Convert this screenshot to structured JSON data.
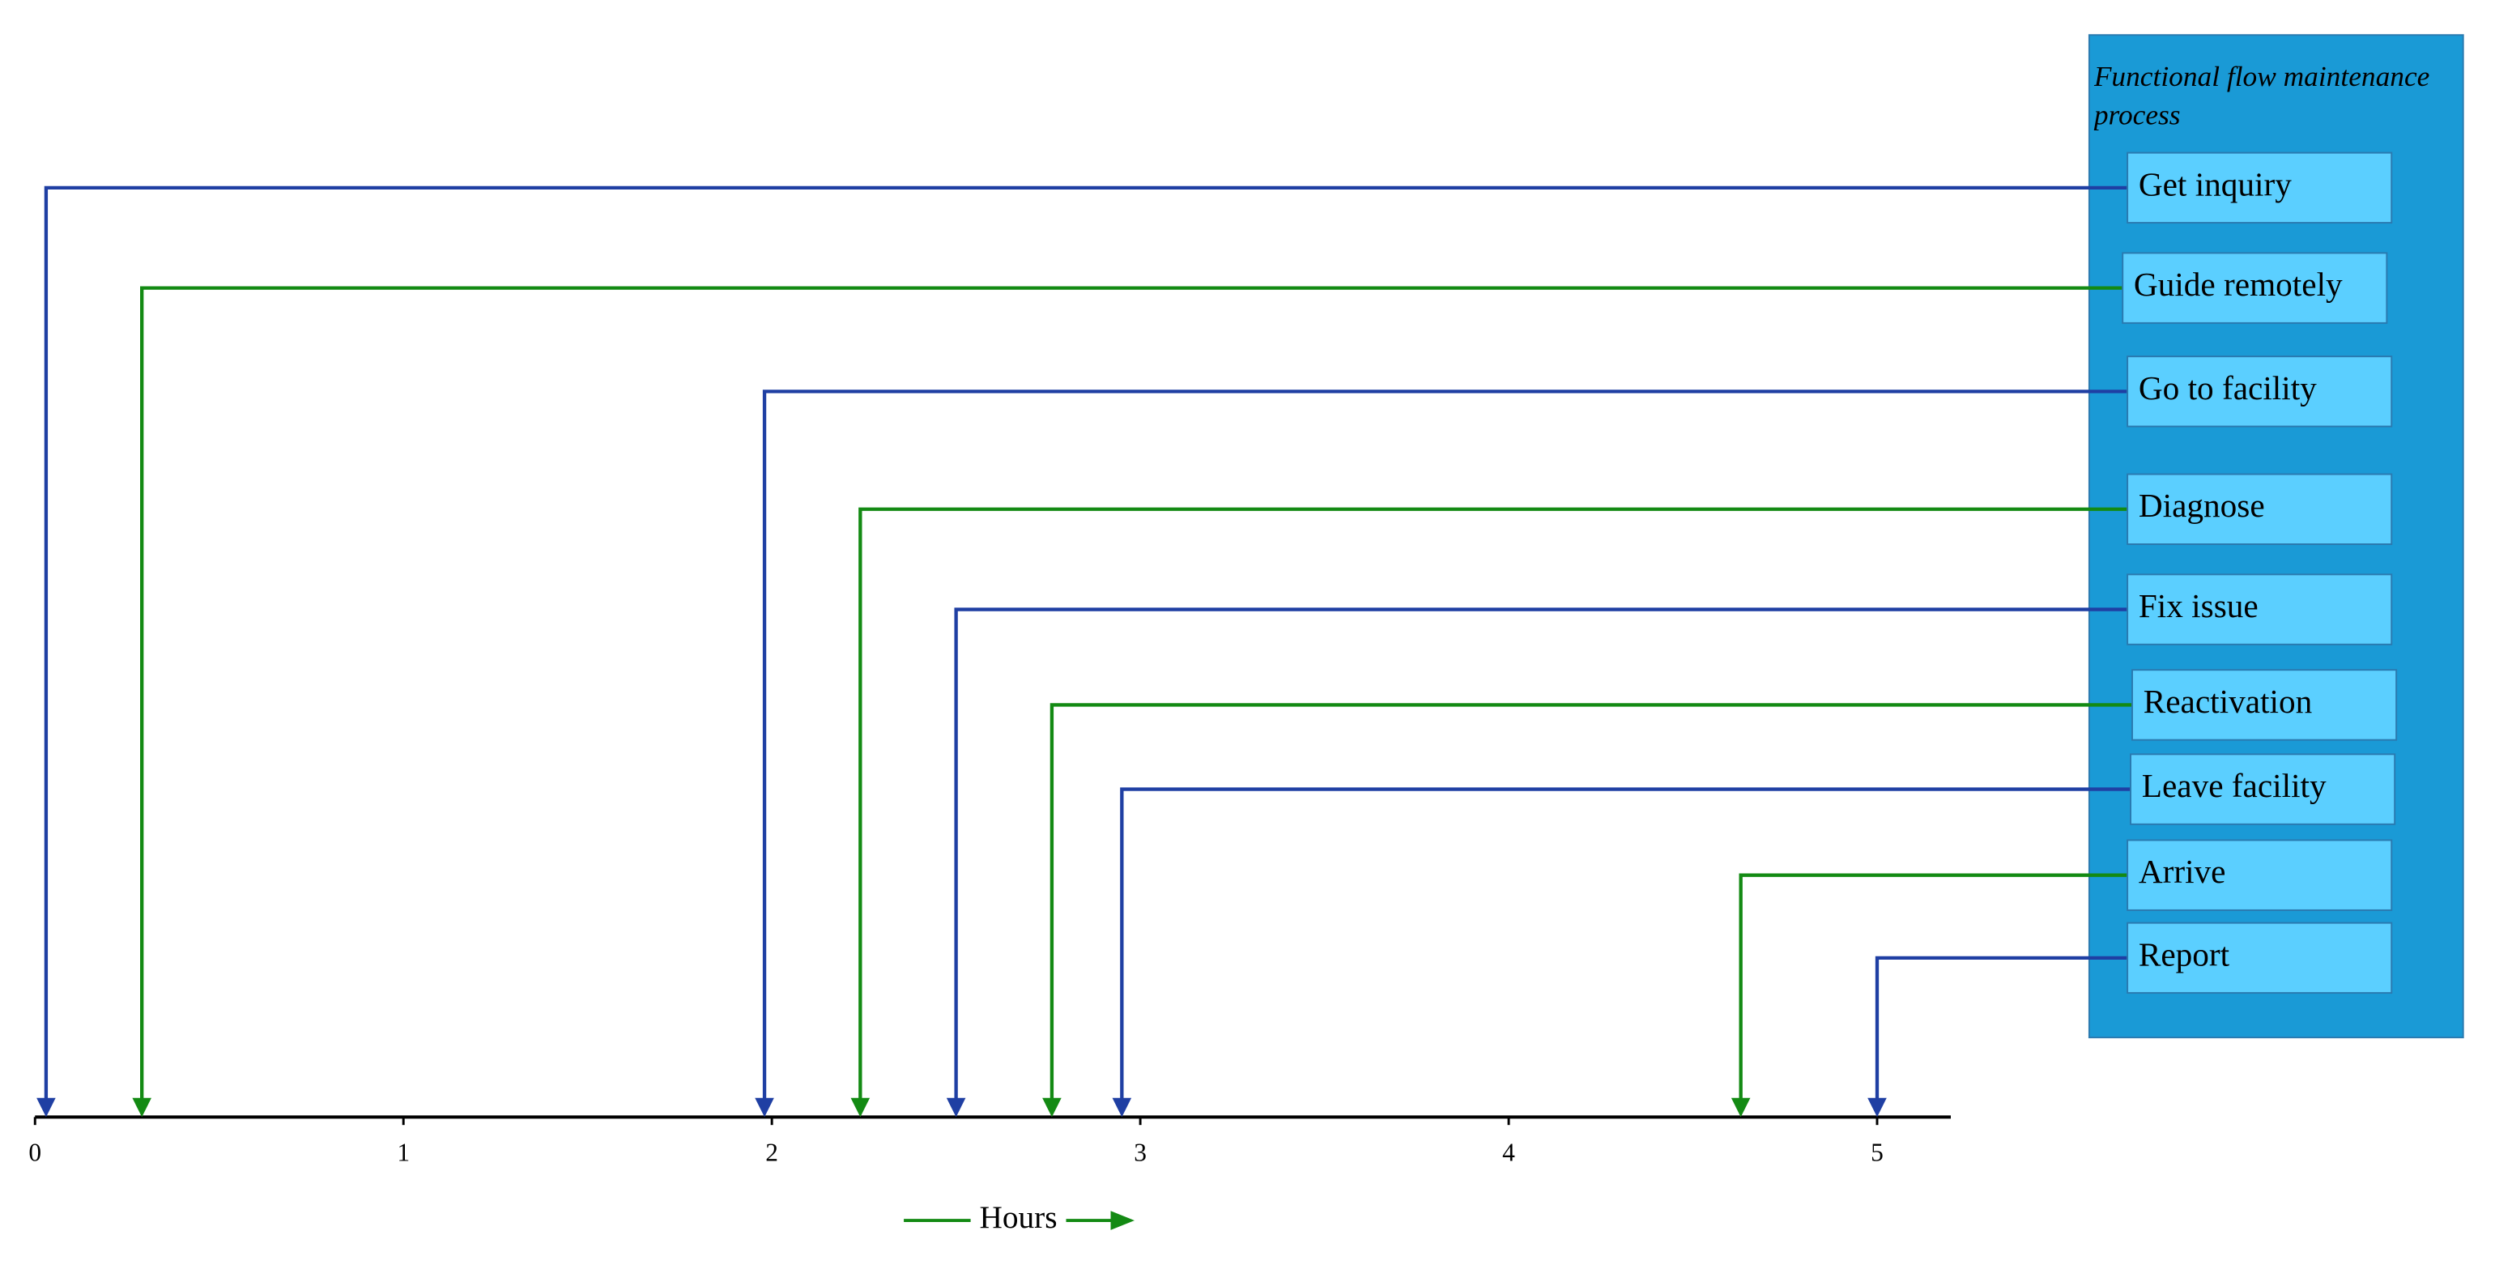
{
  "chart_data": {
    "type": "timeline",
    "panel_title": "Functional flow maintenance process",
    "xlabel": "Hours",
    "categories": [
      "Get inquiry",
      "Guide remotely",
      "Go to facility",
      "Diagnose",
      "Fix issue",
      "Reactivation",
      "Leave facility",
      "Arrive",
      "Report"
    ],
    "values": [
      0.03,
      0.29,
      1.98,
      2.24,
      2.5,
      2.76,
      2.95,
      4.63,
      5.0
    ],
    "colors": [
      "#1f3fa3",
      "#138a13",
      "#1f3fa3",
      "#138a13",
      "#1f3fa3",
      "#138a13",
      "#1f3fa3",
      "#138a13",
      "#1f3fa3"
    ],
    "xlim": [
      0,
      5.2
    ],
    "xticks": [
      0,
      1,
      2,
      3,
      4,
      5
    ]
  }
}
